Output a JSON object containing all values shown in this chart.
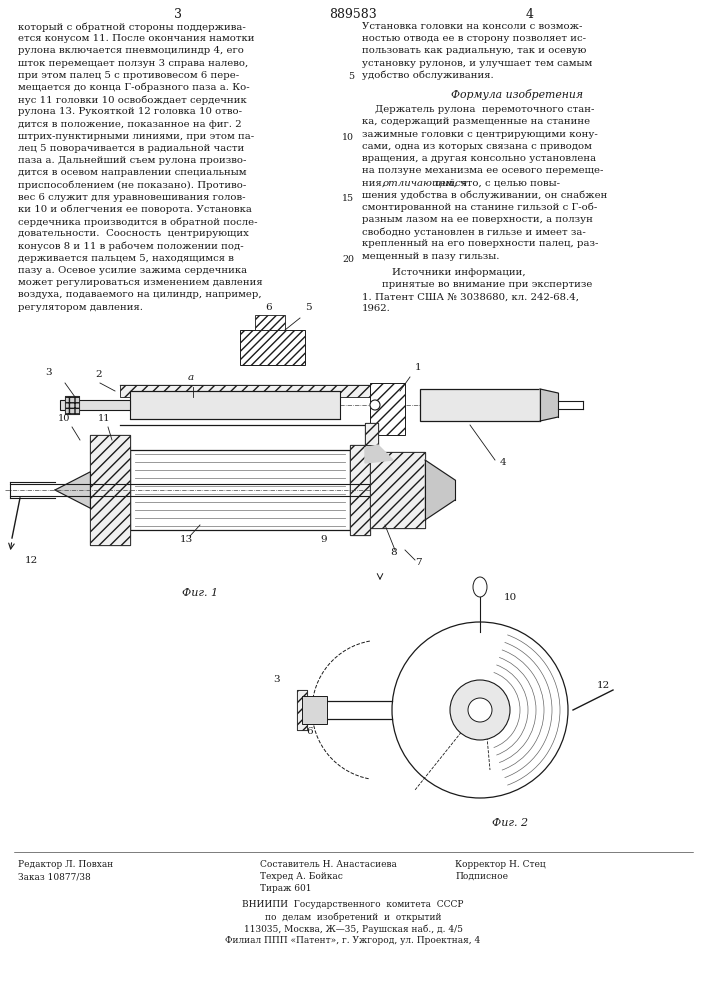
{
  "page_number_left": "3",
  "page_number_right": "4",
  "patent_number": "889583",
  "bg_color": "#ffffff",
  "text_color": "#000000",
  "left_column_lines": [
    "держивается пальцем 5, находящимся в",
    "пазу а. Осевое усилие зажима сердечника",
    "может регулироваться изменением давления",
    "воздуха, подаваемого на цилиндр, например,",
    "регулятором давления."
  ],
  "left_column_lines_top": [
    "который с обратной стороны поддержива-",
    "ется конусом 11. После окончания намотки",
    "рулона включается пневмоцилиндр 4, его",
    "шток перемещает ползун 3 справа налево,",
    "при этом палец 5 с противовесом 6 пере-",
    "мещается до конца Г-образного паза а. Ко-",
    "нус 11 головки 10 освобождает сердечник",
    "рулона 13. Рукояткой 12 головка 10 отво-",
    "дится в положение, показанное на фиг. 2",
    "штрих-пунктирными линиями, при этом па-",
    "лец 5 поворачивается в радиальной части",
    "паза а. Дальнейший съем рулона произво-",
    "дится в осевом направлении специальным",
    "приспособлением (не показано). Противо-",
    "вес 6 служит для уравновешивания голов-",
    "ки 10 и облегчения ее поворота. Установка",
    "сердечника производится в обратной после-",
    "довательности.  Соосность  центрирующих",
    "конусов 8 и 11 в рабочем положении под-"
  ],
  "right_col_top": [
    "Установка головки на консоли с возмож-",
    "ностью отвода ее в сторону позволяет ис-",
    "пользовать как радиальную, так и осевую",
    "установку рулонов, и улучшает тем самым",
    "удобство обслуживания."
  ],
  "formula_title": "Формула изобретения",
  "formula_lines": [
    "    Держатель рулона  перемоточного стан-",
    "ка, содержащий размещенные на станине",
    "зажимные головки с центрирующими кону-",
    "сами, одна из которых связана с приводом",
    "вращения, а другая консольно установлена",
    "на ползуне механизма ее осевого перемеще-",
    "ния, отличающийся тем, что, с целью повы-",
    "шения удобства в обслуживании, он снабжен",
    "смонтированной на станине гильзой с Г-об-",
    "разным лазом на ее поверхности, а ползун",
    "свободно установлен в гильзе и имеет за-",
    "крепленный на его поверхности палец, раз-",
    "мещенный в пазу гильзы."
  ],
  "italic_word": "отличающийся",
  "sources_header": "Источники информации,",
  "sources_subheader": "принятые во внимание при экспертизе",
  "sources_ref1": "1. Патент США № 3038680, кл. 242-68.4,",
  "sources_ref2": "1962.",
  "line_markers": [
    "5",
    "10",
    "15",
    "20"
  ],
  "fig1_caption": "Фиг. 1",
  "fig2_caption": "Фиг. 2",
  "footer_left1": "Редактор Л. Повхан",
  "footer_left2": "Заказ 10877/38",
  "footer_center1": "Составитель Н. Анастасиева",
  "footer_center2": "Техред А. Бойкас",
  "footer_center3": "Тираж 601",
  "footer_right1": "Корректор Н. Стец",
  "footer_right2": "Подписное",
  "footer_vnipi": "ВНИИПИ  Государственного  комитета  СССР",
  "footer_affairs": "по  делам  изобретений  и  открытий",
  "footer_address": "113035, Москва, Ж—35, Раушская наб., д. 4/5",
  "footer_branch": "Филиал ППП «Патент», г. Ужгород, ул. Проектная, 4",
  "hatch_color": "#555555",
  "line_color": "#1a1a1a",
  "roll_fill": "#c8c8c8",
  "fig2_circle_fill": "#d8d8d8"
}
